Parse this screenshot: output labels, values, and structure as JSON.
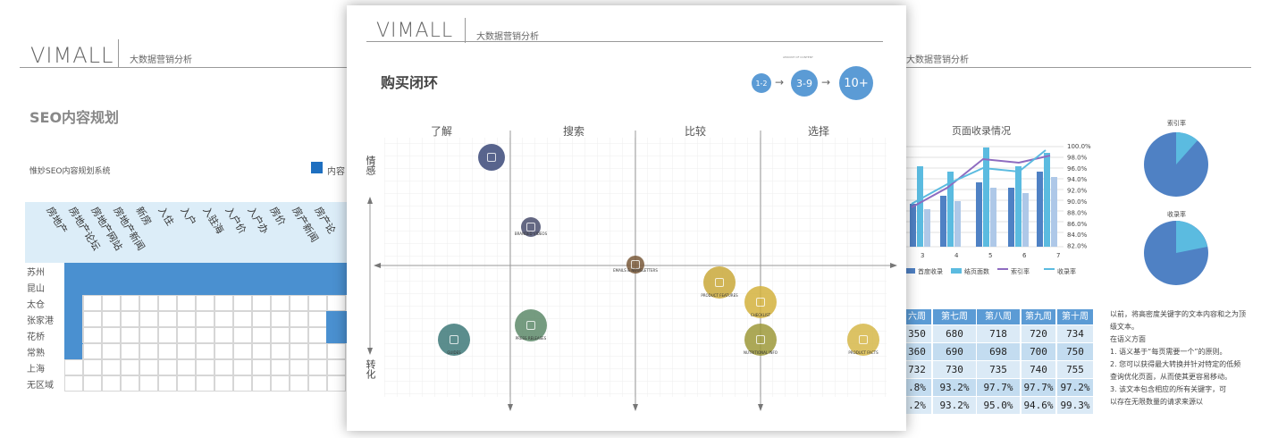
{
  "brand": "VIMALL",
  "brand_subtitle": "大数据营销分析",
  "left_card": {
    "title": "SEO内容规划",
    "subtitle": "惟妙SEO内容规划系统",
    "legend_label": "内容",
    "row_labels": [
      "苏州",
      "昆山",
      "太仓",
      "张家港",
      "花桥",
      "常熟",
      "上海",
      "无区域"
    ],
    "col_headers": [
      "房地产",
      "房地产论坛",
      "房地产网站",
      "房地产新闻",
      "新房",
      "入住",
      "入户",
      "入驻海",
      "入户价",
      "入户办",
      "房价",
      "房产新闻",
      "房产论"
    ]
  },
  "front_card": {
    "title": "购买闭环",
    "steps_caption": "AMOUNT OF CONTENT",
    "steps": [
      "1-2",
      "3-9",
      "10+"
    ],
    "phases": [
      "了解",
      "搜索",
      "比较",
      "选择"
    ],
    "axis_top": "情感",
    "axis_bottom": "转化",
    "bubbles": [
      {
        "label": "",
        "icon": "camera-icon",
        "color": "#3c4a7a"
      },
      {
        "label": "BRANDED VIDEOS",
        "icon": "play-icon",
        "color": "#4a4e6e"
      },
      {
        "label": "EMAILS & NEWSLETTERS",
        "icon": "mail-icon",
        "color": "#7a5a3a"
      },
      {
        "label": "PRODUCT FEATURES",
        "icon": "doc-icon",
        "color": "#c9a93a"
      },
      {
        "label": "CHECKLIST",
        "icon": "list-icon",
        "color": "#d4b23e"
      },
      {
        "label": "GUIDES",
        "icon": "doc-icon",
        "color": "#3f7a7a"
      },
      {
        "label": "PRESS RELEASES",
        "icon": "doc-icon",
        "color": "#5e8a6a"
      },
      {
        "label": "NUTRITIONAL INFO",
        "icon": "doc-icon",
        "color": "#9e9a3a"
      },
      {
        "label": "PRODUCT FACTS",
        "icon": "doc-icon",
        "color": "#d6b84a"
      }
    ]
  },
  "right_card": {
    "subtitle": "大数据营销分析",
    "chart": {
      "title": "页面收录情况",
      "legend": [
        "首度收录",
        "结页面数",
        "索引率",
        "收录率"
      ],
      "y_right_ticks": [
        "100.0%",
        "98.0%",
        "96.0%",
        "94.0%",
        "92.0%",
        "90.0%",
        "88.0%",
        "86.0%",
        "84.0%",
        "82.0%"
      ],
      "x_ticks": [
        "3",
        "4",
        "5",
        "6",
        "7"
      ]
    },
    "pie1_title": "索引率",
    "pie2_title": "收录率",
    "table": {
      "headers": [
        "六周",
        "第七周",
        "第八周",
        "第九周",
        "第十周"
      ],
      "rows": [
        [
          "350",
          "680",
          "718",
          "720",
          "734"
        ],
        [
          "360",
          "690",
          "698",
          "700",
          "750"
        ],
        [
          "732",
          "730",
          "735",
          "740",
          "755"
        ],
        [
          ".8%",
          "93.2%",
          "97.7%",
          "97.7%",
          "97.2%"
        ],
        [
          ".2%",
          "93.2%",
          "95.0%",
          "94.6%",
          "99.3%"
        ]
      ]
    },
    "notes": [
      "以前，将高密度关键字的文本内容和之为顶",
      "级文本。",
      "在语义方面",
      "1. 语义基于“每页需要一个”的原则。",
      "2. 您可以获得最大转换并针对特定的低频",
      "   查询优化页面，从而使其更容易移动。",
      "3. 该文本包含相应的所有关键字，可",
      "   以存在无限数量的请求来源以"
    ]
  }
}
